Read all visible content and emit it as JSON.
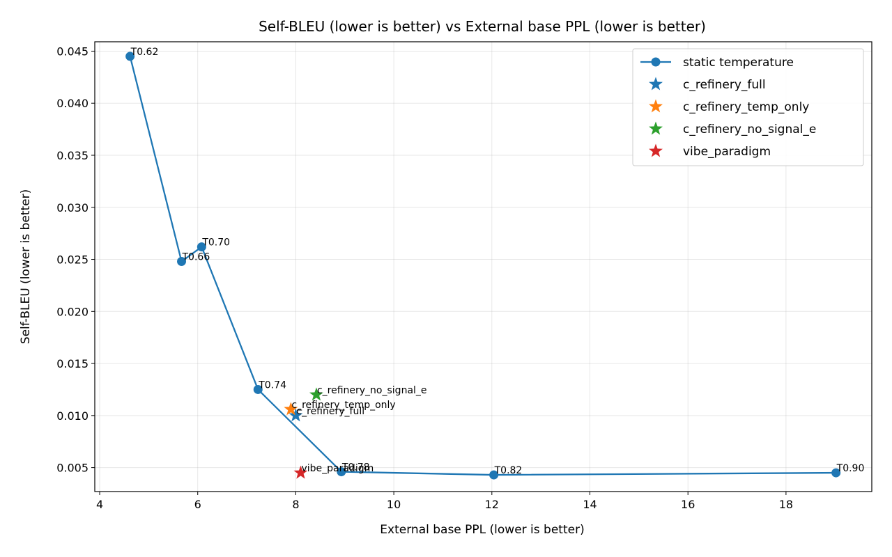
{
  "chart_data": {
    "type": "scatter",
    "title": "Self-BLEU (lower is better) vs External base PPL (lower is better)",
    "xlabel": "External base PPL (lower is better)",
    "ylabel": "Self-BLEU (lower is better)",
    "xlim": [
      3.9,
      19.75
    ],
    "ylim": [
      0.0027,
      0.0459
    ],
    "xticks": [
      4,
      6,
      8,
      10,
      12,
      14,
      16,
      18
    ],
    "xtick_labels": [
      "4",
      "6",
      "8",
      "10",
      "12",
      "14",
      "16",
      "18"
    ],
    "yticks": [
      0.005,
      0.01,
      0.015,
      0.02,
      0.025,
      0.03,
      0.035,
      0.04,
      0.045
    ],
    "ytick_labels": [
      "0.005",
      "0.010",
      "0.015",
      "0.020",
      "0.025",
      "0.030",
      "0.035",
      "0.040",
      "0.045"
    ],
    "grid": true,
    "legend_position": "upper right",
    "legend_entries": [
      {
        "label": "static temperature",
        "marker": "circle-line",
        "color": "#1f77b4"
      },
      {
        "label": "c_refinery_full",
        "marker": "star",
        "color": "#1f77b4"
      },
      {
        "label": "c_refinery_temp_only",
        "marker": "star",
        "color": "#ff7f0e"
      },
      {
        "label": "c_refinery_no_signal_e",
        "marker": "star",
        "color": "#2ca02c"
      },
      {
        "label": "vibe_paradigm",
        "marker": "star",
        "color": "#d62728"
      }
    ],
    "series": [
      {
        "name": "static temperature",
        "type": "line",
        "color": "#1f77b4",
        "points": [
          {
            "x": 4.62,
            "y": 0.0445,
            "label": "T0.62"
          },
          {
            "x": 5.67,
            "y": 0.0248,
            "label": "T0.66"
          },
          {
            "x": 6.08,
            "y": 0.0262,
            "label": "T0.70"
          },
          {
            "x": 7.23,
            "y": 0.0125,
            "label": "T0.74"
          },
          {
            "x": 8.93,
            "y": 0.0046,
            "label": "T0.78"
          },
          {
            "x": 12.04,
            "y": 0.0043,
            "label": "T0.82"
          },
          {
            "x": 19.02,
            "y": 0.0045,
            "label": "T0.90"
          }
        ]
      },
      {
        "name": "c_refinery_full",
        "type": "star",
        "color": "#1f77b4",
        "points": [
          {
            "x": 8.0,
            "y": 0.01,
            "label": "c_refinery_full"
          }
        ]
      },
      {
        "name": "c_refinery_temp_only",
        "type": "star",
        "color": "#ff7f0e",
        "points": [
          {
            "x": 7.9,
            "y": 0.0106,
            "label": "c_refinery_temp_only"
          }
        ]
      },
      {
        "name": "c_refinery_no_signal_e",
        "type": "star",
        "color": "#2ca02c",
        "points": [
          {
            "x": 8.42,
            "y": 0.012,
            "label": "c_refinery_no_signal_e"
          }
        ]
      },
      {
        "name": "vibe_paradigm",
        "type": "star",
        "color": "#d62728",
        "points": [
          {
            "x": 8.1,
            "y": 0.0045,
            "label": "vibe_paradigm"
          }
        ]
      }
    ]
  }
}
